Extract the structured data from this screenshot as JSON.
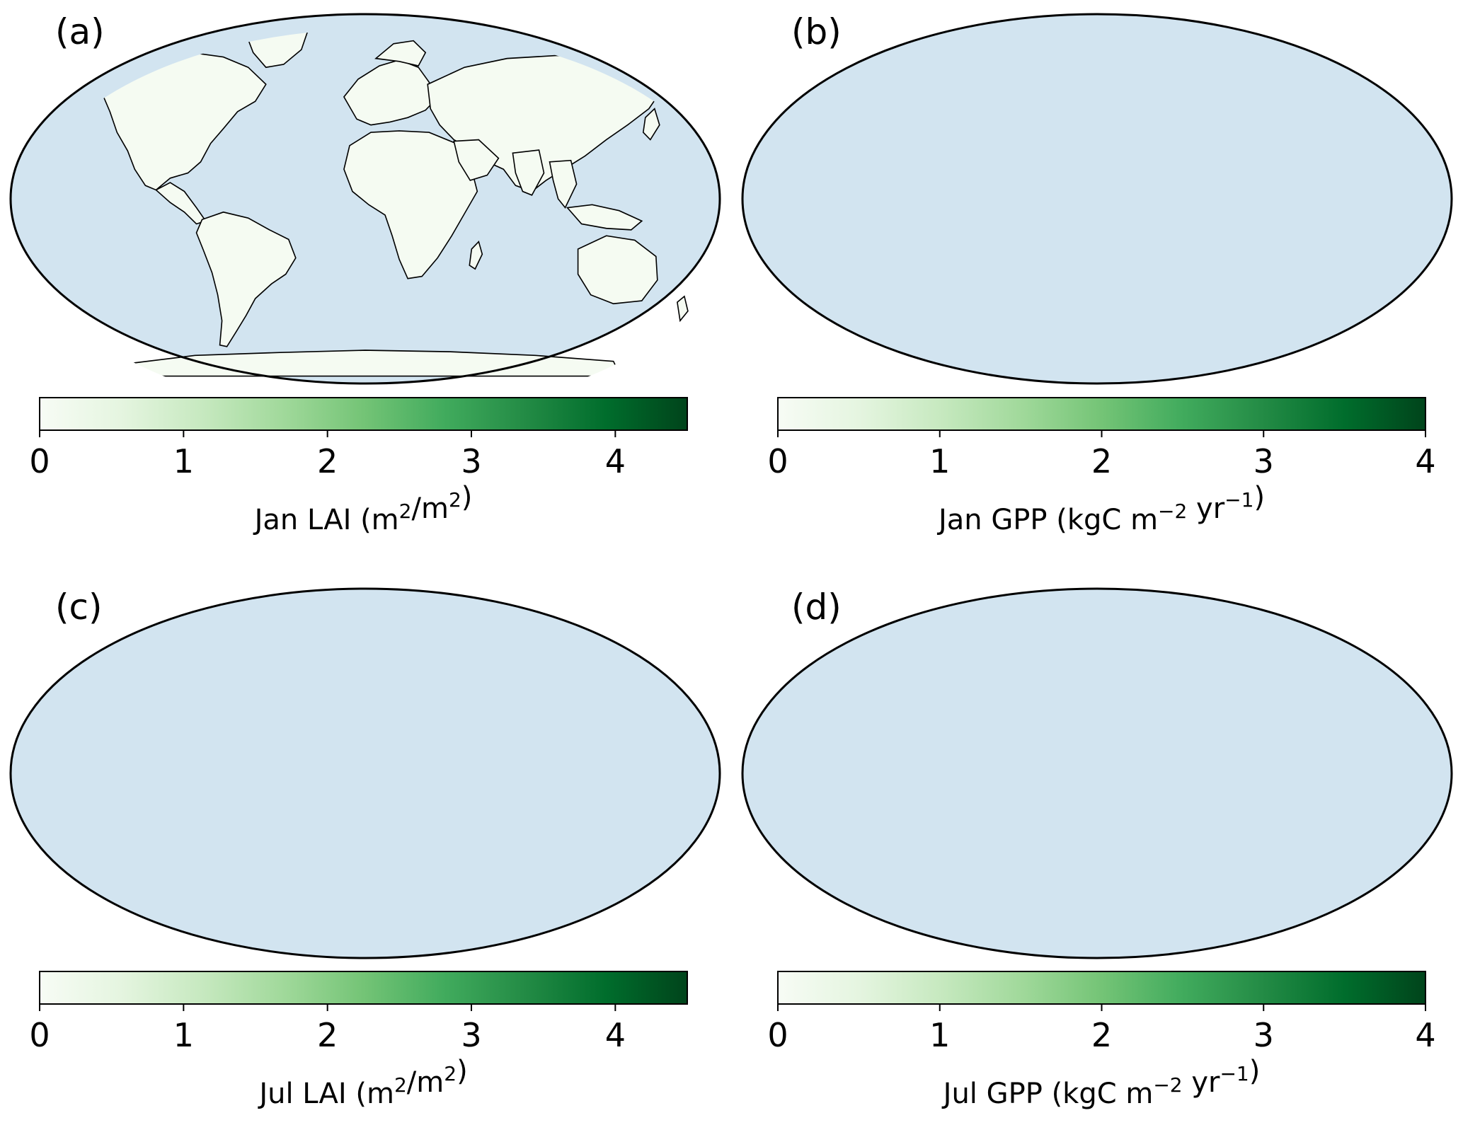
{
  "colormap": {
    "name": "Greens",
    "stops": [
      "#f7fcf5",
      "#e5f5e0",
      "#c7e9c0",
      "#a1d99b",
      "#74c476",
      "#41ab5d",
      "#238b45",
      "#006d2c",
      "#00441b"
    ]
  },
  "colors": {
    "ocean": "#d2e4f0",
    "land_base": "#f5fbf2",
    "coast": "#000000"
  },
  "panels": [
    {
      "id": "a",
      "label": "(a)",
      "variable": "LAI",
      "month": "Jan",
      "colorbar": {
        "vmin": 0,
        "vmax": 4.5,
        "ticks": [
          "0",
          "1",
          "2",
          "3",
          "4"
        ],
        "tick_values": [
          0,
          1,
          2,
          3,
          4
        ],
        "title_main": "Jan  LAI (m",
        "title_sup1": "2",
        "title_mid": "/m",
        "title_sup2": "2",
        "title_end": ")"
      }
    },
    {
      "id": "b",
      "label": "(b)",
      "variable": "GPP",
      "month": "Jan",
      "colorbar": {
        "vmin": 0,
        "vmax": 4,
        "ticks": [
          "0",
          "1",
          "2",
          "3",
          "4"
        ],
        "tick_values": [
          0,
          1,
          2,
          3,
          4
        ],
        "title_main": "Jan  GPP (kgC m",
        "title_sup1": "−2",
        "title_mid": " yr",
        "title_sup2": "−1",
        "title_end": ")"
      }
    },
    {
      "id": "c",
      "label": "(c)",
      "variable": "LAI",
      "month": "Jul",
      "colorbar": {
        "vmin": 0,
        "vmax": 4.5,
        "ticks": [
          "0",
          "1",
          "2",
          "3",
          "4"
        ],
        "tick_values": [
          0,
          1,
          2,
          3,
          4
        ],
        "title_main": "Jul  LAI (m",
        "title_sup1": "2",
        "title_mid": "/m",
        "title_sup2": "2",
        "title_end": ")"
      }
    },
    {
      "id": "d",
      "label": "(d)",
      "variable": "GPP",
      "month": "Jul",
      "colorbar": {
        "vmin": 0,
        "vmax": 4,
        "ticks": [
          "0",
          "1",
          "2",
          "3",
          "4"
        ],
        "tick_values": [
          0,
          1,
          2,
          3,
          4
        ],
        "title_main": "Jul  GPP (kgC m",
        "title_sup1": "−2",
        "title_mid": " yr",
        "title_sup2": "−1",
        "title_end": ")"
      }
    }
  ]
}
